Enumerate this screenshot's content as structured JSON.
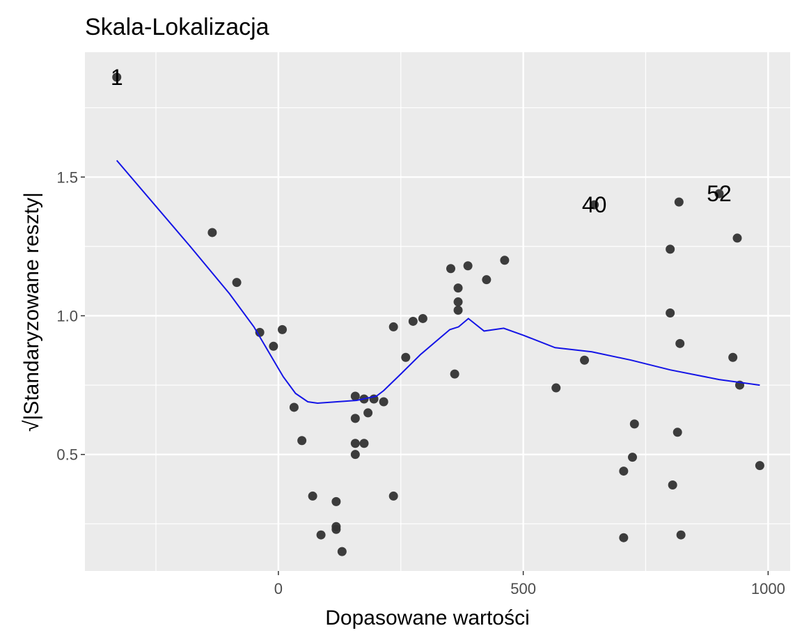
{
  "chart_data": {
    "type": "scatter",
    "title": "Skala-Lokalizacja",
    "xlabel": "Dopasowane wartości",
    "ylabel": "√|Standaryzowane reszty|",
    "xlim": [
      -395,
      1045
    ],
    "ylim": [
      0.08,
      1.95
    ],
    "x_ticks": [
      0,
      500,
      1000
    ],
    "x_tick_labels": [
      "0",
      "500",
      "1000"
    ],
    "y_ticks": [
      0.5,
      1.0,
      1.5
    ],
    "y_tick_labels": [
      "0.5",
      "1.0",
      "1.5"
    ],
    "grid": true,
    "panel_background": "#ebebeb",
    "point_color": "#333333",
    "smooth_color": "#1414e6",
    "points": [
      {
        "x": -330,
        "y": 1.86
      },
      {
        "x": -135,
        "y": 1.3
      },
      {
        "x": -85,
        "y": 1.12
      },
      {
        "x": -38,
        "y": 0.94
      },
      {
        "x": -10,
        "y": 0.89
      },
      {
        "x": 8,
        "y": 0.95
      },
      {
        "x": 32,
        "y": 0.67
      },
      {
        "x": 48,
        "y": 0.55
      },
      {
        "x": 70,
        "y": 0.35
      },
      {
        "x": 87,
        "y": 0.21
      },
      {
        "x": 118,
        "y": 0.33
      },
      {
        "x": 118,
        "y": 0.24
      },
      {
        "x": 118,
        "y": 0.23
      },
      {
        "x": 130,
        "y": 0.15
      },
      {
        "x": 157,
        "y": 0.71
      },
      {
        "x": 157,
        "y": 0.63
      },
      {
        "x": 157,
        "y": 0.54
      },
      {
        "x": 157,
        "y": 0.5
      },
      {
        "x": 175,
        "y": 0.7
      },
      {
        "x": 175,
        "y": 0.54
      },
      {
        "x": 183,
        "y": 0.65
      },
      {
        "x": 195,
        "y": 0.7
      },
      {
        "x": 215,
        "y": 0.69
      },
      {
        "x": 235,
        "y": 0.96
      },
      {
        "x": 235,
        "y": 0.35
      },
      {
        "x": 260,
        "y": 0.85
      },
      {
        "x": 275,
        "y": 0.98
      },
      {
        "x": 295,
        "y": 0.99
      },
      {
        "x": 352,
        "y": 1.17
      },
      {
        "x": 360,
        "y": 0.79
      },
      {
        "x": 367,
        "y": 1.1
      },
      {
        "x": 367,
        "y": 1.05
      },
      {
        "x": 367,
        "y": 1.02
      },
      {
        "x": 387,
        "y": 1.18
      },
      {
        "x": 425,
        "y": 1.13
      },
      {
        "x": 462,
        "y": 1.2
      },
      {
        "x": 567,
        "y": 0.74
      },
      {
        "x": 625,
        "y": 0.84
      },
      {
        "x": 645,
        "y": 1.4
      },
      {
        "x": 705,
        "y": 0.44
      },
      {
        "x": 705,
        "y": 0.2
      },
      {
        "x": 723,
        "y": 0.49
      },
      {
        "x": 727,
        "y": 0.61
      },
      {
        "x": 800,
        "y": 1.24
      },
      {
        "x": 800,
        "y": 1.01
      },
      {
        "x": 805,
        "y": 0.39
      },
      {
        "x": 815,
        "y": 0.58
      },
      {
        "x": 818,
        "y": 1.41
      },
      {
        "x": 820,
        "y": 0.9
      },
      {
        "x": 822,
        "y": 0.21
      },
      {
        "x": 900,
        "y": 1.44
      },
      {
        "x": 928,
        "y": 0.85
      },
      {
        "x": 937,
        "y": 1.28
      },
      {
        "x": 942,
        "y": 0.75
      },
      {
        "x": 983,
        "y": 0.46
      }
    ],
    "smooth_line": [
      {
        "x": -330,
        "y": 1.56
      },
      {
        "x": -180,
        "y": 1.25
      },
      {
        "x": -100,
        "y": 1.08
      },
      {
        "x": -50,
        "y": 0.96
      },
      {
        "x": -10,
        "y": 0.84
      },
      {
        "x": 10,
        "y": 0.78
      },
      {
        "x": 35,
        "y": 0.72
      },
      {
        "x": 60,
        "y": 0.69
      },
      {
        "x": 80,
        "y": 0.685
      },
      {
        "x": 120,
        "y": 0.69
      },
      {
        "x": 160,
        "y": 0.695
      },
      {
        "x": 200,
        "y": 0.71
      },
      {
        "x": 215,
        "y": 0.73
      },
      {
        "x": 250,
        "y": 0.79
      },
      {
        "x": 290,
        "y": 0.86
      },
      {
        "x": 350,
        "y": 0.95
      },
      {
        "x": 368,
        "y": 0.96
      },
      {
        "x": 388,
        "y": 0.99
      },
      {
        "x": 420,
        "y": 0.945
      },
      {
        "x": 460,
        "y": 0.955
      },
      {
        "x": 500,
        "y": 0.93
      },
      {
        "x": 565,
        "y": 0.885
      },
      {
        "x": 640,
        "y": 0.87
      },
      {
        "x": 720,
        "y": 0.84
      },
      {
        "x": 800,
        "y": 0.805
      },
      {
        "x": 900,
        "y": 0.77
      },
      {
        "x": 983,
        "y": 0.75
      }
    ],
    "annotations": [
      {
        "text": "1",
        "x": -330,
        "y": 1.86
      },
      {
        "text": "40",
        "x": 645,
        "y": 1.4
      },
      {
        "text": "52",
        "x": 900,
        "y": 1.44
      }
    ]
  }
}
